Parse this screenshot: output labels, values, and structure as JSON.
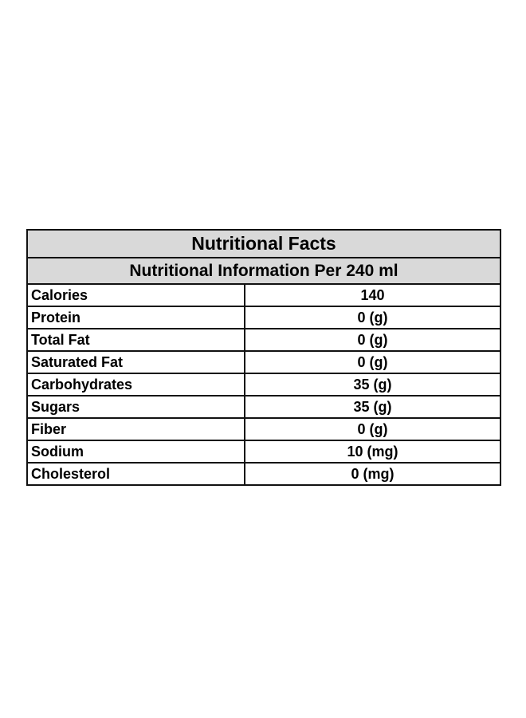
{
  "title": "Nutritional Facts",
  "subtitle": "Nutritional Information Per 240 ml",
  "rows": [
    {
      "nutrient": "Calories",
      "amount": "140"
    },
    {
      "nutrient": "Protein",
      "amount": "0 (g)"
    },
    {
      "nutrient": "Total Fat",
      "amount": "0 (g)"
    },
    {
      "nutrient": "Saturated Fat",
      "amount": "0 (g)"
    },
    {
      "nutrient": "Carbohydrates",
      "amount": "35 (g)"
    },
    {
      "nutrient": "Sugars",
      "amount": "35 (g)"
    },
    {
      "nutrient": "Fiber",
      "amount": "0 (g)"
    },
    {
      "nutrient": "Sodium",
      "amount": "10 (mg)"
    },
    {
      "nutrient": "Cholesterol",
      "amount": "0 (mg)"
    }
  ],
  "colors": {
    "header_background": "#d9d9d9",
    "border": "#111111",
    "text": "#000000"
  }
}
